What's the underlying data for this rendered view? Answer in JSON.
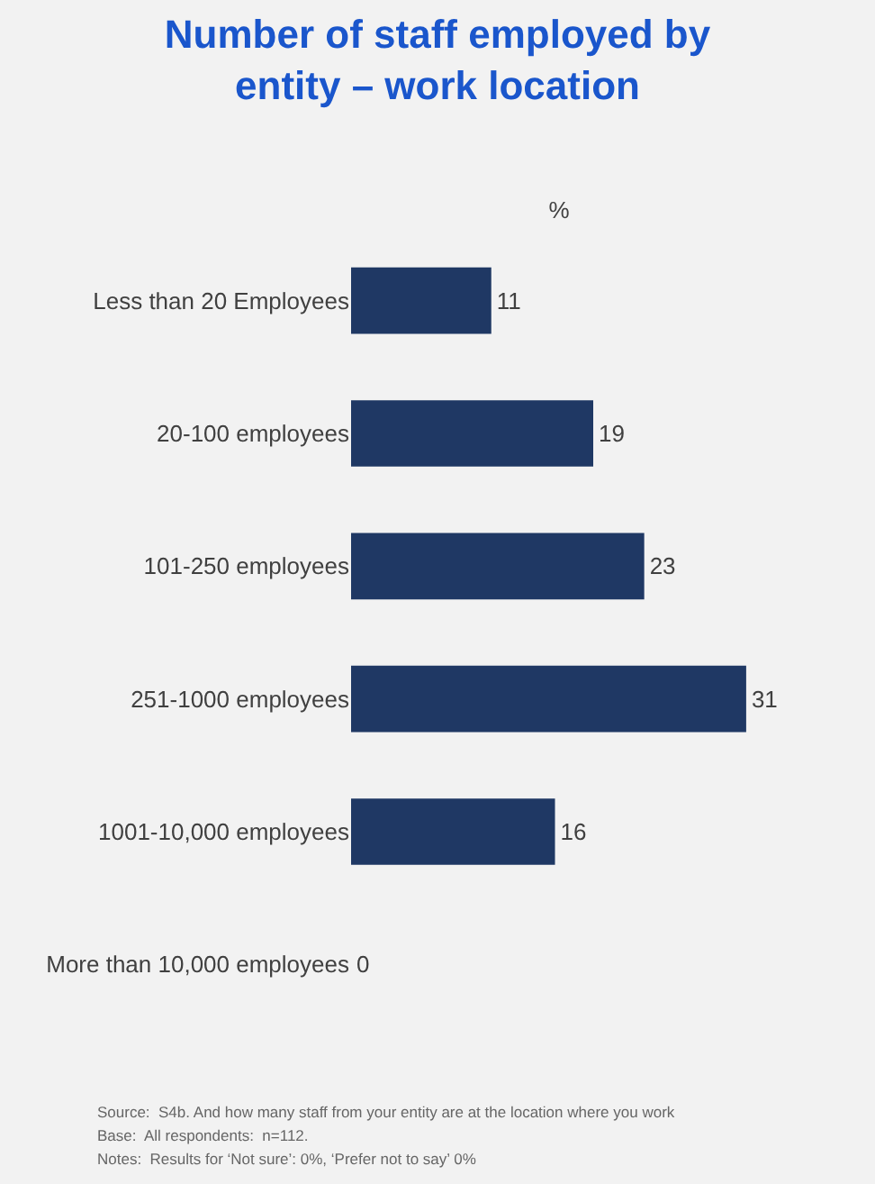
{
  "chart_data": {
    "type": "bar",
    "orientation": "horizontal",
    "title": "Number of staff employed by entity – work location",
    "xlabel": "%",
    "categories": [
      "Less than 20 Employees",
      "20-100 employees",
      "101-250 employees",
      "251-1000 employees",
      "1001-10,000 employees",
      "More than 10,000 employees"
    ],
    "values": [
      11,
      19,
      23,
      31,
      16,
      0
    ],
    "color": "#1f3864",
    "data_labels": true,
    "grid": false,
    "legend": false,
    "tick_labels": "y",
    "annotations": [
      "Source:  S4b. And how many staff from your entity are at the location where you work",
      "Base:  All respondents:  n=112.",
      "Notes:  Results for ‘Not sure’: 0%, ‘Prefer not to say’ 0%"
    ]
  }
}
